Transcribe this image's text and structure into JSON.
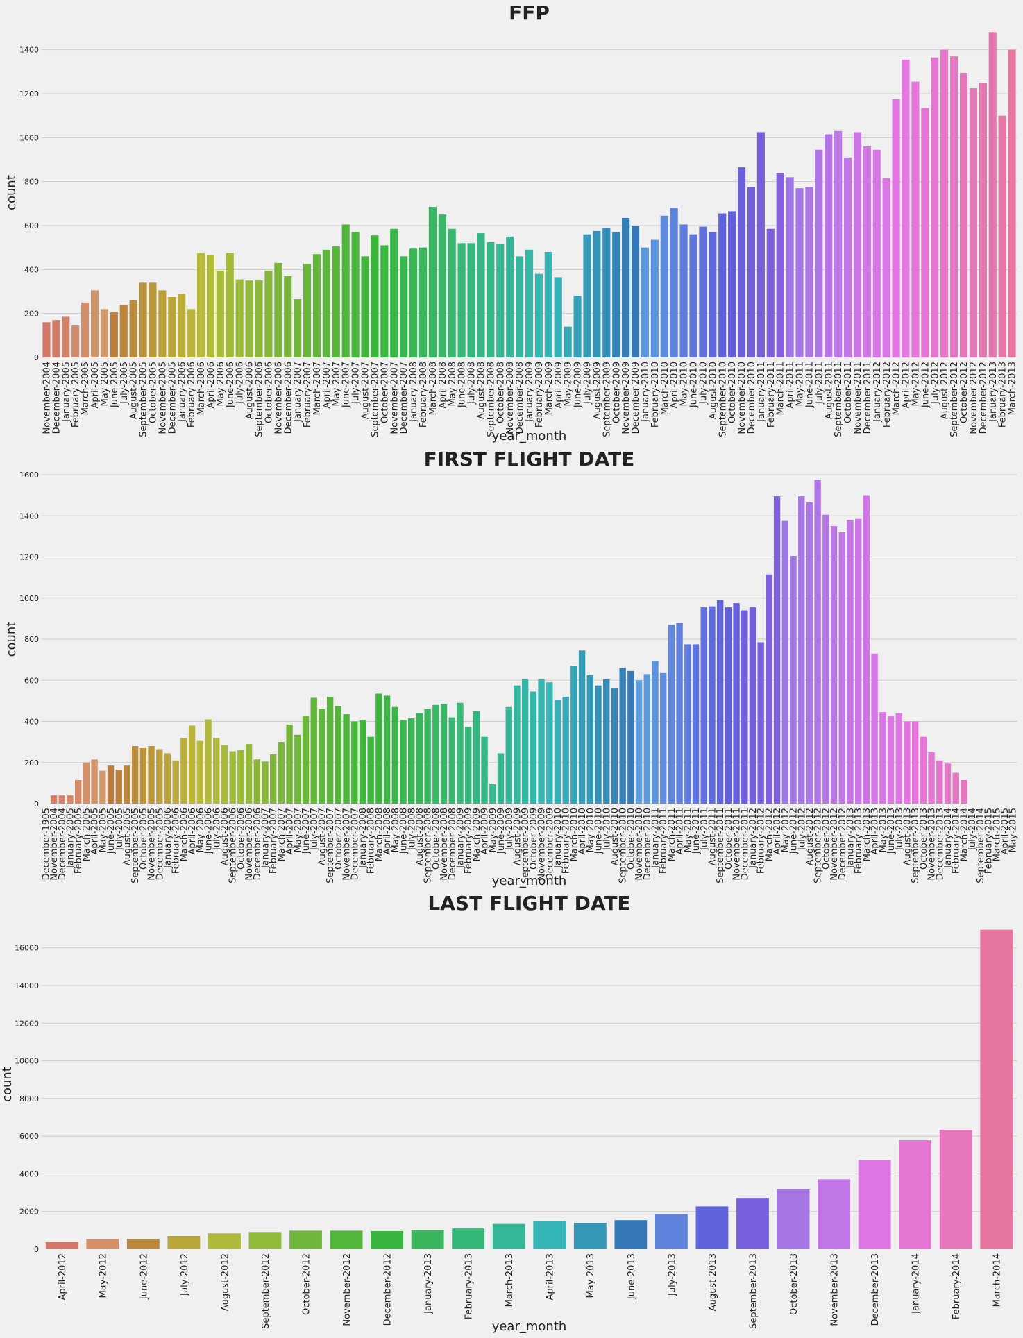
{
  "chart_data": [
    {
      "type": "bar",
      "title": "FFP",
      "xlabel": "year_month",
      "ylabel": "count",
      "ylim": [
        0,
        1500
      ],
      "yticks": [
        0,
        200,
        400,
        600,
        800,
        1000,
        1200,
        1400
      ],
      "grid": "y",
      "categories": [
        "November-2004",
        "December-2004",
        "January-2005",
        "February-2005",
        "March-2005",
        "April-2005",
        "May-2005",
        "June-2005",
        "July-2005",
        "August-2005",
        "September-2005",
        "October-2005",
        "November-2005",
        "December-2005",
        "January-2006",
        "February-2006",
        "March-2006",
        "April-2006",
        "May-2006",
        "June-2006",
        "July-2006",
        "August-2006",
        "September-2006",
        "October-2006",
        "November-2006",
        "December-2006",
        "January-2007",
        "February-2007",
        "March-2007",
        "April-2007",
        "May-2007",
        "June-2007",
        "July-2007",
        "August-2007",
        "September-2007",
        "October-2007",
        "November-2007",
        "December-2007",
        "January-2008",
        "February-2008",
        "March-2008",
        "April-2008",
        "May-2008",
        "June-2008",
        "July-2008",
        "August-2008",
        "September-2008",
        "October-2008",
        "November-2008",
        "December-2008",
        "January-2009",
        "February-2009",
        "March-2009",
        "April-2009",
        "May-2009",
        "June-2009",
        "July-2009",
        "August-2009",
        "September-2009",
        "October-2009",
        "November-2009",
        "December-2009",
        "January-2010",
        "February-2010",
        "March-2010",
        "April-2010",
        "May-2010",
        "June-2010",
        "July-2010",
        "August-2010",
        "September-2010",
        "October-2010",
        "November-2010",
        "December-2010",
        "January-2011",
        "February-2011",
        "March-2011",
        "April-2011",
        "May-2011",
        "June-2011",
        "July-2011",
        "August-2011",
        "September-2011",
        "October-2011",
        "November-2011",
        "December-2011",
        "January-2012",
        "February-2012",
        "March-2012",
        "April-2012",
        "May-2012",
        "June-2012",
        "July-2012",
        "August-2012",
        "September-2012",
        "October-2012",
        "November-2012",
        "December-2012",
        "January-2013",
        "February-2013",
        "March-2013"
      ],
      "values": [
        160,
        170,
        185,
        145,
        250,
        305,
        220,
        205,
        240,
        260,
        340,
        340,
        305,
        275,
        290,
        220,
        475,
        465,
        395,
        475,
        355,
        350,
        350,
        395,
        430,
        370,
        265,
        425,
        470,
        490,
        505,
        605,
        570,
        460,
        555,
        510,
        585,
        460,
        495,
        500,
        685,
        650,
        585,
        520,
        520,
        565,
        525,
        515,
        550,
        460,
        490,
        380,
        480,
        365,
        140,
        280,
        560,
        575,
        590,
        570,
        635,
        600,
        500,
        535,
        645,
        680,
        605,
        560,
        595,
        570,
        655,
        665,
        865,
        775,
        1025,
        585,
        840,
        820,
        770,
        775,
        945,
        1015,
        1030,
        910,
        1025,
        960,
        945,
        815,
        1175,
        1355,
        1255,
        1135,
        1365,
        1400,
        1370,
        1295,
        1225,
        1250,
        1480,
        1100,
        1400
      ]
    },
    {
      "type": "bar",
      "title": "FIRST FLIGHT DATE",
      "xlabel": "year_month",
      "ylabel": "count",
      "ylim": [
        0,
        1600
      ],
      "yticks": [
        0,
        200,
        400,
        600,
        800,
        1000,
        1200,
        1400,
        1600
      ],
      "grid": "y",
      "categories": [
        "December-1905",
        "November-2004",
        "December-2004",
        "January-2005",
        "February-2005",
        "March-2005",
        "April-2005",
        "May-2005",
        "June-2005",
        "July-2005",
        "August-2005",
        "September-2005",
        "October-2005",
        "November-2005",
        "December-2005",
        "January-2006",
        "February-2006",
        "March-2006",
        "April-2006",
        "May-2006",
        "June-2006",
        "July-2006",
        "August-2006",
        "September-2006",
        "October-2006",
        "November-2006",
        "December-2006",
        "January-2007",
        "February-2007",
        "March-2007",
        "April-2007",
        "May-2007",
        "June-2007",
        "July-2007",
        "August-2007",
        "September-2007",
        "October-2007",
        "November-2007",
        "December-2007",
        "January-2008",
        "February-2008",
        "March-2008",
        "April-2008",
        "May-2008",
        "June-2008",
        "July-2008",
        "August-2008",
        "September-2008",
        "October-2008",
        "November-2008",
        "December-2008",
        "January-2009",
        "February-2009",
        "March-2009",
        "April-2009",
        "May-2009",
        "June-2009",
        "July-2009",
        "August-2009",
        "September-2009",
        "October-2009",
        "November-2009",
        "December-2009",
        "January-2010",
        "February-2010",
        "March-2010",
        "April-2010",
        "May-2010",
        "June-2010",
        "July-2010",
        "August-2010",
        "September-2010",
        "October-2010",
        "November-2010",
        "December-2010",
        "January-2011",
        "February-2011",
        "March-2011",
        "April-2011",
        "May-2011",
        "June-2011",
        "July-2011",
        "August-2011",
        "September-2011",
        "October-2011",
        "November-2011",
        "December-2011",
        "January-2012",
        "February-2012",
        "March-2012",
        "April-2012",
        "May-2012",
        "June-2012",
        "July-2012",
        "August-2012",
        "September-2012",
        "October-2012",
        "November-2012",
        "December-2012",
        "January-2013",
        "February-2013",
        "March-2013",
        "April-2013",
        "May-2013",
        "June-2013",
        "July-2013",
        "August-2013",
        "September-2013",
        "October-2013",
        "November-2013",
        "December-2013",
        "January-2014",
        "February-2014",
        "March-2014",
        "July-2014",
        "September-2014",
        "February-2015",
        "March-2015",
        "April-2015",
        "May-2015"
      ],
      "values": [
        0,
        40,
        40,
        40,
        115,
        200,
        215,
        160,
        185,
        165,
        185,
        280,
        270,
        280,
        265,
        245,
        210,
        320,
        380,
        305,
        410,
        320,
        285,
        255,
        260,
        290,
        215,
        205,
        240,
        300,
        385,
        335,
        425,
        515,
        460,
        520,
        475,
        435,
        400,
        405,
        325,
        535,
        525,
        470,
        405,
        415,
        440,
        460,
        480,
        485,
        420,
        490,
        375,
        450,
        325,
        95,
        245,
        470,
        575,
        605,
        545,
        605,
        590,
        505,
        520,
        670,
        745,
        625,
        575,
        605,
        560,
        660,
        645,
        600,
        630,
        695,
        635,
        870,
        880,
        775,
        775,
        955,
        960,
        990,
        955,
        975,
        940,
        955,
        785,
        1115,
        1495,
        1375,
        1205,
        1495,
        1465,
        1575,
        1405,
        1350,
        1320,
        1380,
        1385,
        1500,
        730,
        445,
        425,
        440,
        400,
        400,
        325,
        250,
        210,
        195,
        150,
        115,
        0,
        0,
        0,
        0,
        0,
        0
      ]
    },
    {
      "type": "bar",
      "title": "LAST FLIGHT DATE",
      "xlabel": "year_month",
      "ylabel": "count",
      "ylim": [
        0,
        17500
      ],
      "yticks": [
        0,
        2000,
        4000,
        6000,
        8000,
        10000,
        12000,
        14000,
        16000
      ],
      "grid": "y",
      "categories": [
        "April-2012",
        "May-2012",
        "June-2012",
        "July-2012",
        "August-2012",
        "September-2012",
        "October-2012",
        "November-2012",
        "December-2012",
        "January-2013",
        "February-2013",
        "March-2013",
        "April-2013",
        "May-2013",
        "June-2013",
        "July-2013",
        "August-2013",
        "September-2013",
        "October-2013",
        "November-2013",
        "December-2013",
        "January-2014",
        "February-2014",
        "March-2014"
      ],
      "values": [
        380,
        540,
        550,
        700,
        840,
        910,
        980,
        980,
        960,
        1010,
        1100,
        1340,
        1500,
        1390,
        1540,
        1870,
        2270,
        2720,
        3170,
        3710,
        4740,
        5780,
        6330,
        16960
      ]
    }
  ]
}
